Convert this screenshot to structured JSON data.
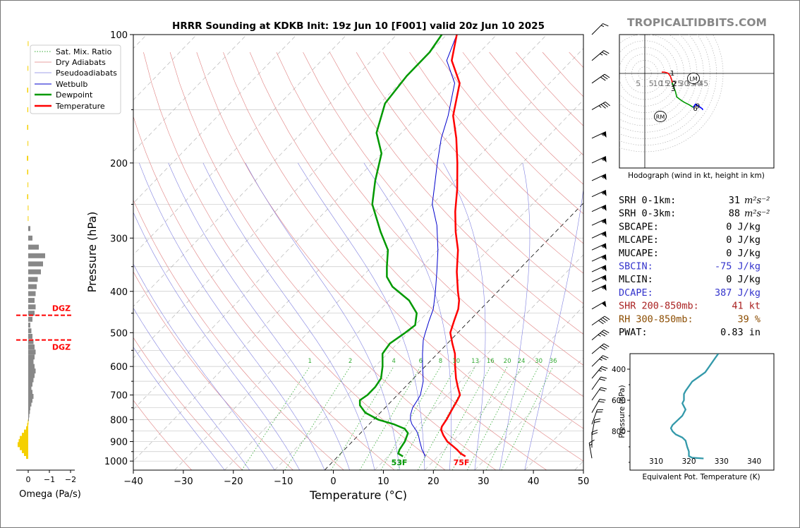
{
  "site": "TROPICALTIDBITS.COM",
  "title": "HRRR Sounding at KDKB Init: 19z Jun 10 [F001] valid 20z Jun 10 2025",
  "skewt": {
    "xlabel": "Temperature (°C)",
    "ylabel": "Pressure (hPa)",
    "xlim": [
      -40,
      50
    ],
    "ylim": [
      1050,
      100
    ],
    "xticks": [
      "−40",
      "−30",
      "−20",
      "−10",
      "0",
      "10",
      "20",
      "30",
      "40",
      "50"
    ],
    "yticks": [
      "100",
      "200",
      "300",
      "400",
      "500",
      "600",
      "700",
      "800",
      "900",
      "1000"
    ],
    "mixing_ratio_labels": [
      "1",
      "2",
      "4",
      "6",
      "8",
      "10",
      "13",
      "16",
      "20",
      "24",
      "30",
      "36"
    ],
    "surface_temp_label": "75F",
    "surface_dewpoint_label": "53F",
    "legend": [
      "Sat. Mix. Ratio",
      "Dry Adiabats",
      "Pseudoadiabats",
      "Wetbulb",
      "Dewpoint",
      "Temperature"
    ],
    "colors": {
      "temperature": "#ff0000",
      "dewpoint": "#009900",
      "wetbulb": "#0000cc",
      "dry_adiabat": "#e08080",
      "moist_adiabat": "#8080e0",
      "mixing_ratio": "#33aa33"
    }
  },
  "chart_data": [
    {
      "type": "line",
      "title": "HRRR Sounding at KDKB Init: 19z Jun 10 [F001] valid 20z Jun 10 2025",
      "xlabel": "Temperature (°C)",
      "ylabel": "Pressure (hPa)",
      "y_scale": "log",
      "series": [
        {
          "name": "Temperature",
          "points": [
            [
              975,
              25.5
            ],
            [
              960,
              24
            ],
            [
              940,
              22.5
            ],
            [
              920,
              20.8
            ],
            [
              900,
              19
            ],
            [
              870,
              17
            ],
            [
              845,
              15.5
            ],
            [
              830,
              15
            ],
            [
              800,
              14.6
            ],
            [
              760,
              13.8
            ],
            [
              720,
              13
            ],
            [
              700,
              12.5
            ],
            [
              670,
              10.5
            ],
            [
              640,
              8.5
            ],
            [
              600,
              6
            ],
            [
              560,
              3.5
            ],
            [
              530,
              1
            ],
            [
              500,
              -1.5
            ],
            [
              470,
              -3
            ],
            [
              440,
              -4.5
            ],
            [
              420,
              -6
            ],
            [
              400,
              -8
            ],
            [
              360,
              -12
            ],
            [
              320,
              -16
            ],
            [
              290,
              -20
            ],
            [
              260,
              -24
            ],
            [
              230,
              -28
            ],
            [
              200,
              -33
            ],
            [
              175,
              -38
            ],
            [
              155,
              -43
            ],
            [
              130,
              -48
            ],
            [
              115,
              -54
            ],
            [
              100,
              -58
            ]
          ]
        },
        {
          "name": "Dewpoint",
          "points": [
            [
              975,
              13
            ],
            [
              960,
              11.5
            ],
            [
              940,
              11
            ],
            [
              900,
              10.5
            ],
            [
              860,
              9.5
            ],
            [
              840,
              8
            ],
            [
              820,
              5
            ],
            [
              800,
              1
            ],
            [
              770,
              -3
            ],
            [
              740,
              -5.5
            ],
            [
              720,
              -6.5
            ],
            [
              700,
              -6
            ],
            [
              670,
              -6
            ],
            [
              640,
              -6.5
            ],
            [
              600,
              -8.5
            ],
            [
              560,
              -11
            ],
            [
              530,
              -11.5
            ],
            [
              500,
              -10.5
            ],
            [
              480,
              -10
            ],
            [
              450,
              -12
            ],
            [
              420,
              -16
            ],
            [
              390,
              -22
            ],
            [
              370,
              -25
            ],
            [
              350,
              -27
            ],
            [
              320,
              -30
            ],
            [
              290,
              -35
            ],
            [
              250,
              -42
            ],
            [
              220,
              -46
            ],
            [
              190,
              -50
            ],
            [
              170,
              -55
            ],
            [
              145,
              -59
            ],
            [
              125,
              -60
            ],
            [
              110,
              -60
            ],
            [
              100,
              -61
            ]
          ]
        },
        {
          "name": "Wetbulb",
          "points": [
            [
              975,
              17.5
            ],
            [
              940,
              15.5
            ],
            [
              900,
              13.5
            ],
            [
              870,
              12
            ],
            [
              850,
              10.8
            ],
            [
              820,
              8.6
            ],
            [
              800,
              7.4
            ],
            [
              780,
              6.5
            ],
            [
              750,
              5.5
            ],
            [
              720,
              5
            ],
            [
              700,
              4.6
            ],
            [
              650,
              2.5
            ],
            [
              600,
              -0.5
            ],
            [
              560,
              -3
            ],
            [
              520,
              -5.5
            ],
            [
              500,
              -6.5
            ],
            [
              470,
              -8
            ],
            [
              440,
              -9.5
            ],
            [
              400,
              -12.5
            ],
            [
              360,
              -16
            ],
            [
              320,
              -20
            ],
            [
              280,
              -25
            ],
            [
              250,
              -30
            ],
            [
              220,
              -34
            ],
            [
              200,
              -37
            ],
            [
              175,
              -41
            ],
            [
              155,
              -44
            ],
            [
              130,
              -49
            ],
            [
              115,
              -55
            ],
            [
              100,
              -58
            ]
          ]
        }
      ]
    },
    {
      "type": "bar",
      "title": "",
      "xlabel": "Omega (Pa/s)",
      "xticks": [
        "0",
        "−1",
        "−2"
      ],
      "xlim": [
        1,
        -2.5
      ],
      "dgz_label": "DGZ",
      "dgz_hpa": [
        455,
        520
      ],
      "levels": [
        975,
        960,
        945,
        930,
        915,
        900,
        885,
        870,
        855,
        840,
        825,
        810,
        795,
        780,
        765,
        750,
        735,
        720,
        705,
        690,
        675,
        660,
        645,
        630,
        615,
        600,
        585,
        570,
        555,
        540,
        525,
        510,
        495,
        480,
        465,
        450,
        435,
        420,
        405,
        390,
        375,
        360,
        345,
        330,
        315,
        300,
        285,
        270,
        255,
        240,
        225,
        210,
        195,
        180,
        165,
        150,
        135,
        120,
        105
      ],
      "values": [
        0.1,
        0.2,
        0.3,
        0.4,
        0.5,
        0.45,
        0.4,
        0.3,
        0.2,
        0.1,
        0.05,
        0.02,
        -0.03,
        -0.05,
        -0.08,
        -0.1,
        -0.15,
        -0.2,
        -0.25,
        -0.2,
        -0.15,
        -0.2,
        -0.25,
        -0.3,
        -0.35,
        -0.3,
        -0.25,
        -0.3,
        -0.35,
        -0.3,
        -0.25,
        -0.2,
        -0.15,
        -0.1,
        -0.2,
        -0.3,
        -0.35,
        -0.3,
        -0.35,
        -0.4,
        -0.45,
        -0.6,
        -0.7,
        -0.8,
        -0.5,
        -0.2,
        -0.1,
        0.02,
        0.02,
        0.05,
        0.03,
        0.05,
        0.06,
        0.03,
        0.05,
        0.04,
        0.05,
        0.03,
        0.02
      ]
    },
    {
      "type": "line",
      "title": "",
      "xlabel": "Equivalent Pot. Temperature (K)",
      "ylabel": "Pressure (hPa)",
      "xlim": [
        302,
        346
      ],
      "ylim": [
        1050,
        300
      ],
      "xticks": [
        "310",
        "320",
        "330",
        "340"
      ],
      "yticks": [
        "400",
        "600",
        "800"
      ],
      "series": [
        {
          "name": "",
          "points": [
            [
              975,
              324.5
            ],
            [
              970,
              321
            ],
            [
              960,
              320
            ],
            [
              930,
              320
            ],
            [
              900,
              319.5
            ],
            [
              860,
              319
            ],
            [
              840,
              318
            ],
            [
              820,
              316
            ],
            [
              800,
              315
            ],
            [
              780,
              314.5
            ],
            [
              760,
              315
            ],
            [
              740,
              316
            ],
            [
              720,
              317
            ],
            [
              700,
              318
            ],
            [
              680,
              318.5
            ],
            [
              660,
              319
            ],
            [
              640,
              318.5
            ],
            [
              620,
              318
            ],
            [
              600,
              318.5
            ],
            [
              580,
              318.5
            ],
            [
              560,
              318.5
            ],
            [
              540,
              319
            ],
            [
              510,
              320
            ],
            [
              480,
              321
            ],
            [
              450,
              323
            ],
            [
              420,
              325
            ],
            [
              390,
              326
            ],
            [
              360,
              327
            ],
            [
              330,
              328
            ],
            [
              300,
              329
            ]
          ]
        }
      ]
    },
    {
      "type": "scatter",
      "title": "Hodograph (wind in kt, height in km)",
      "ring_labels": [
        "5",
        "5",
        "10",
        "15",
        "20",
        "25",
        "30",
        "35",
        "40",
        "45"
      ],
      "markers": [
        "RM",
        "LM"
      ],
      "height_labels": [
        "1",
        "2",
        "3",
        "6",
        "9"
      ],
      "segments": [
        {
          "color": "#ff0000",
          "points": [
            [
              13,
              1
            ],
            [
              15,
              1
            ],
            [
              17,
              0.5
            ],
            [
              18,
              0
            ],
            [
              19.5,
              -2
            ],
            [
              20.5,
              -4.5
            ],
            [
              21,
              -7
            ]
          ]
        },
        {
          "color": "#009900",
          "points": [
            [
              21,
              -7
            ],
            [
              22,
              -10
            ],
            [
              23.5,
              -14
            ],
            [
              24.5,
              -18
            ],
            [
              27,
              -20
            ],
            [
              30,
              -22
            ],
            [
              34,
              -24
            ],
            [
              37,
              -26
            ]
          ]
        },
        {
          "color": "#0000ff",
          "points": [
            [
              37,
              -26
            ],
            [
              39,
              -23.5
            ],
            [
              41,
              -25
            ],
            [
              44,
              -27
            ],
            [
              44.5,
              -28
            ]
          ]
        }
      ]
    }
  ],
  "stats": [
    {
      "label": "SRH 0-1km:",
      "value": "31",
      "unit": "m²s⁻²",
      "color": "#000000"
    },
    {
      "label": "SRH 0-3km:",
      "value": "88",
      "unit": "m²s⁻²",
      "color": "#000000"
    },
    {
      "label": "SBCAPE:",
      "value": "0 J/kg",
      "unit": "",
      "color": "#000000"
    },
    {
      "label": "MLCAPE:",
      "value": "0 J/kg",
      "unit": "",
      "color": "#000000"
    },
    {
      "label": "MUCAPE:",
      "value": "0 J/kg",
      "unit": "",
      "color": "#000000"
    },
    {
      "label": "SBCIN:",
      "value": "-75 J/kg",
      "unit": "",
      "color": "#3333cc"
    },
    {
      "label": "MLCIN:",
      "value": "0 J/kg",
      "unit": "",
      "color": "#000000"
    },
    {
      "label": "DCAPE:",
      "value": "387 J/kg",
      "unit": "",
      "color": "#3333cc"
    },
    {
      "label": "SHR 200-850mb:",
      "value": "41 kt",
      "unit": "",
      "color": "#aa2222"
    },
    {
      "label": "RH 300-850mb:",
      "value": "39 %",
      "unit": "",
      "color": "#8b4c00"
    },
    {
      "label": "PWAT:",
      "value": "0.83 in",
      "unit": "",
      "color": "#000000"
    }
  ],
  "wind_barbs": [
    {
      "p": 985,
      "dir": 170,
      "kt": 15
    },
    {
      "p": 930,
      "dir": 180,
      "kt": 20
    },
    {
      "p": 870,
      "dir": 190,
      "kt": 20
    },
    {
      "p": 820,
      "dir": 200,
      "kt": 20
    },
    {
      "p": 770,
      "dir": 210,
      "kt": 20
    },
    {
      "p": 720,
      "dir": 215,
      "kt": 20
    },
    {
      "p": 680,
      "dir": 215,
      "kt": 20
    },
    {
      "p": 640,
      "dir": 220,
      "kt": 25
    },
    {
      "p": 600,
      "dir": 225,
      "kt": 25
    },
    {
      "p": 560,
      "dir": 230,
      "kt": 30
    },
    {
      "p": 520,
      "dir": 230,
      "kt": 35
    },
    {
      "p": 480,
      "dir": 235,
      "kt": 40
    },
    {
      "p": 440,
      "dir": 240,
      "kt": 50
    },
    {
      "p": 400,
      "dir": 245,
      "kt": 55
    },
    {
      "p": 380,
      "dir": 245,
      "kt": 55
    },
    {
      "p": 360,
      "dir": 245,
      "kt": 55
    },
    {
      "p": 340,
      "dir": 245,
      "kt": 55
    },
    {
      "p": 320,
      "dir": 245,
      "kt": 55
    },
    {
      "p": 300,
      "dir": 245,
      "kt": 55
    },
    {
      "p": 280,
      "dir": 245,
      "kt": 55
    },
    {
      "p": 260,
      "dir": 245,
      "kt": 55
    },
    {
      "p": 240,
      "dir": 245,
      "kt": 55
    },
    {
      "p": 220,
      "dir": 245,
      "kt": 55
    },
    {
      "p": 200,
      "dir": 245,
      "kt": 55
    },
    {
      "p": 175,
      "dir": 245,
      "kt": 55
    },
    {
      "p": 150,
      "dir": 240,
      "kt": 35
    },
    {
      "p": 130,
      "dir": 235,
      "kt": 30
    },
    {
      "p": 115,
      "dir": 230,
      "kt": 25
    },
    {
      "p": 100,
      "dir": 225,
      "kt": 15
    }
  ]
}
